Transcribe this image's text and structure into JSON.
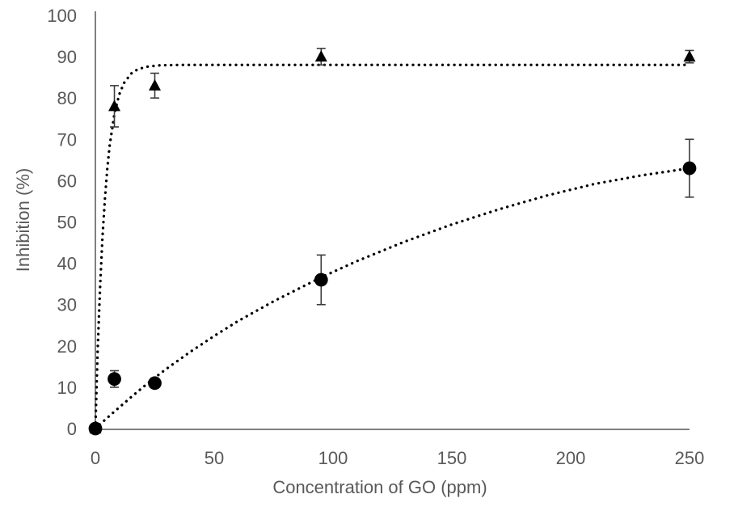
{
  "chart_data": {
    "type": "scatter",
    "title": "",
    "xlabel": "Concentration of GO (ppm)",
    "ylabel": "Inhibition (%)",
    "xlim": [
      0,
      250
    ],
    "ylim": [
      0,
      100
    ],
    "x_ticks": [
      0,
      50,
      100,
      150,
      200,
      250
    ],
    "y_ticks": [
      0,
      10,
      20,
      30,
      40,
      50,
      60,
      70,
      80,
      90,
      100
    ],
    "grid": false,
    "legend": "none",
    "styles": {
      "marker_color": "#000000",
      "axis_color": "#808080",
      "label_color": "#595959",
      "error_bar_color": "#3a3a3a",
      "trend_line_style": "dotted",
      "background": "#ffffff"
    },
    "series": [
      {
        "name": "triangle-series",
        "marker": "triangle",
        "points": [
          {
            "x": 0,
            "y": 0,
            "err": 0
          },
          {
            "x": 8,
            "y": 78,
            "err": 5
          },
          {
            "x": 25,
            "y": 83,
            "err": 3
          },
          {
            "x": 95,
            "y": 90,
            "err": 2
          },
          {
            "x": 250,
            "y": 90,
            "err": 1.5
          }
        ],
        "trend_description": "dotted saturation curve, steep rise then plateau at ~88%",
        "trend_waypoints": [
          [
            0,
            0
          ],
          [
            1,
            19.5
          ],
          [
            2,
            34.6
          ],
          [
            3,
            46.4
          ],
          [
            4,
            55.6
          ],
          [
            5,
            62.8
          ],
          [
            6,
            68.4
          ],
          [
            8,
            76.1
          ],
          [
            10,
            80.8
          ],
          [
            12,
            83.6
          ],
          [
            15,
            85.9
          ],
          [
            18,
            87.0
          ],
          [
            22,
            87.6
          ],
          [
            27,
            87.9
          ],
          [
            35,
            88
          ],
          [
            60,
            88
          ],
          [
            100,
            88
          ],
          [
            150,
            88
          ],
          [
            200,
            88
          ],
          [
            250,
            88
          ]
        ]
      },
      {
        "name": "circle-series",
        "marker": "circle",
        "points": [
          {
            "x": 0,
            "y": 0,
            "err": 0
          },
          {
            "x": 8,
            "y": 12,
            "err": 2
          },
          {
            "x": 25,
            "y": 11,
            "err": 0
          },
          {
            "x": 95,
            "y": 36,
            "err": 6
          },
          {
            "x": 250,
            "y": 63,
            "err": 7
          }
        ],
        "trend_description": "dotted saturation curve, gradual rise to ~63% at 250 ppm",
        "trend_waypoints": [
          [
            0,
            0
          ],
          [
            5,
            2.6
          ],
          [
            10,
            5.1
          ],
          [
            15,
            7.6
          ],
          [
            20,
            10.0
          ],
          [
            25,
            12.3
          ],
          [
            30,
            14.5
          ],
          [
            40,
            18.6
          ],
          [
            50,
            22.4
          ],
          [
            60,
            26.0
          ],
          [
            75,
            30.8
          ],
          [
            95,
            36.6
          ],
          [
            110,
            40.5
          ],
          [
            130,
            45.2
          ],
          [
            150,
            49.4
          ],
          [
            170,
            53.1
          ],
          [
            190,
            56.4
          ],
          [
            210,
            59.2
          ],
          [
            230,
            61.3
          ],
          [
            250,
            63.0
          ]
        ]
      }
    ]
  }
}
